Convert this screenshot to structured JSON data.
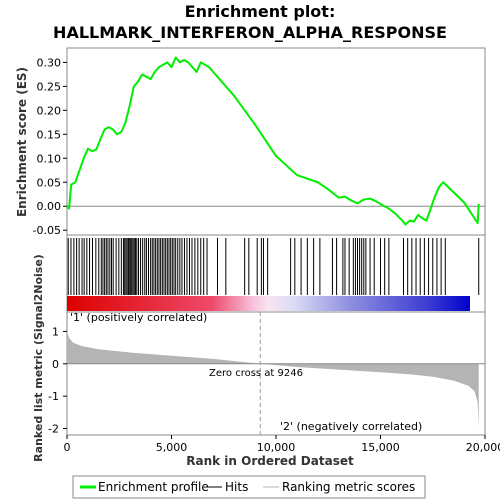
{
  "chart_data": {
    "type": "line",
    "title_line1": "Enrichment plot:",
    "title_line2": "HALLMARK_INTERFERON_ALPHA_RESPONSE",
    "es_ylabel": "Enrichment score (ES)",
    "metric_ylabel": "Ranked list metric (Signal2Noise)",
    "xlabel": "Rank in Ordered Dataset",
    "es_ylim": [
      -0.06,
      0.33
    ],
    "es_yticks": [
      "0.30",
      "0.25",
      "0.20",
      "0.15",
      "0.10",
      "0.05",
      "0.00",
      "-0.05"
    ],
    "es_ytick_values": [
      0.3,
      0.25,
      0.2,
      0.15,
      0.1,
      0.05,
      0.0,
      -0.05
    ],
    "metric_ylim": [
      -2.2,
      1.6
    ],
    "metric_yticks": [
      "1",
      "0",
      "-1",
      "-2"
    ],
    "metric_ytick_values": [
      1,
      0,
      -1,
      -2
    ],
    "xlim": [
      0,
      20000
    ],
    "xticks": [
      "0",
      "5,000",
      "10,000",
      "15,000",
      "20,000"
    ],
    "xtick_values": [
      0,
      5000,
      10000,
      15000,
      20000
    ],
    "enrichment_profile": {
      "name": "Enrichment profile",
      "color": "#00ee00",
      "x": [
        0,
        100,
        200,
        400,
        600,
        800,
        1000,
        1200,
        1400,
        1600,
        1800,
        2000,
        2200,
        2400,
        2600,
        2800,
        3000,
        3200,
        3400,
        3600,
        3800,
        4000,
        4200,
        4400,
        4600,
        4800,
        5000,
        5200,
        5400,
        5600,
        5800,
        6000,
        6200,
        6400,
        6600,
        6800,
        7000,
        8000,
        9000,
        10000,
        11000,
        12000,
        12500,
        13000,
        13300,
        13600,
        13900,
        14200,
        14500,
        14800,
        15100,
        15400,
        15700,
        16000,
        16200,
        16400,
        16600,
        16800,
        17000,
        17200,
        17400,
        17600,
        17800,
        18000,
        19000,
        19650,
        19700
      ],
      "y": [
        0.0,
        -0.005,
        0.045,
        0.05,
        0.075,
        0.1,
        0.12,
        0.115,
        0.118,
        0.14,
        0.16,
        0.165,
        0.16,
        0.15,
        0.155,
        0.175,
        0.21,
        0.25,
        0.26,
        0.275,
        0.27,
        0.265,
        0.28,
        0.29,
        0.295,
        0.3,
        0.29,
        0.31,
        0.3,
        0.305,
        0.3,
        0.29,
        0.28,
        0.3,
        0.295,
        0.29,
        0.28,
        0.23,
        0.17,
        0.105,
        0.065,
        0.05,
        0.035,
        0.018,
        0.02,
        0.012,
        0.006,
        0.014,
        0.016,
        0.01,
        0.002,
        -0.005,
        -0.015,
        -0.028,
        -0.038,
        -0.03,
        -0.032,
        -0.018,
        -0.025,
        -0.03,
        -0.005,
        0.02,
        0.04,
        0.05,
        0.008,
        -0.035,
        0.005
      ]
    },
    "hits": {
      "name": "Hits",
      "ranks": [
        60,
        190,
        330,
        460,
        580,
        720,
        820,
        950,
        1080,
        1220,
        1380,
        1520,
        1640,
        1720,
        1800,
        1880,
        1960,
        2050,
        2130,
        2210,
        2350,
        2480,
        2600,
        2700,
        2760,
        2820,
        2880,
        2940,
        3000,
        3050,
        3100,
        3160,
        3220,
        3280,
        3340,
        3420,
        3520,
        3620,
        3720,
        3800,
        3900,
        4000,
        4080,
        4160,
        4240,
        4320,
        4400,
        4480,
        4560,
        4640,
        4720,
        4800,
        4880,
        4960,
        5040,
        5120,
        5200,
        5300,
        5400,
        5500,
        5620,
        5740,
        5860,
        5980,
        6120,
        6260,
        6400,
        6540,
        6700,
        7200,
        7600,
        8500,
        8700,
        9100,
        9300,
        9400,
        9600,
        10700,
        10900,
        11200,
        11500,
        11800,
        12100,
        12700,
        12900,
        13200,
        13300,
        13500,
        13700,
        13800,
        13900,
        14000,
        14100,
        14200,
        14300,
        14500,
        14700,
        15000,
        15200,
        15400,
        16100,
        16300,
        16500,
        16700,
        16900,
        17100,
        17300,
        17500,
        17700,
        17900,
        18100,
        19700
      ]
    },
    "metric": {
      "name": "Ranking metric scores",
      "color": "#b4b4b4",
      "x": [
        0,
        100,
        300,
        700,
        1500,
        3000,
        5000,
        7000,
        9246,
        11000,
        13000,
        15000,
        16500,
        17500,
        18500,
        19200,
        19500,
        19650,
        19700
      ],
      "y": [
        1.0,
        0.8,
        0.65,
        0.55,
        0.45,
        0.35,
        0.25,
        0.15,
        0.0,
        -0.1,
        -0.18,
        -0.26,
        -0.33,
        -0.4,
        -0.52,
        -0.68,
        -0.85,
        -1.2,
        -2.0
      ]
    },
    "zero_cross_label": "Zero cross at 9246",
    "zero_cross_rank": 9246,
    "pos_label": "'1' (positively correlated)",
    "neg_label": "'2' (negatively correlated)",
    "pos_color": "#dd0000",
    "neg_color": "#0000cc",
    "legend": {
      "items": [
        "Enrichment profile",
        "Hits",
        "Ranking metric scores"
      ],
      "placement": "bottom"
    }
  }
}
